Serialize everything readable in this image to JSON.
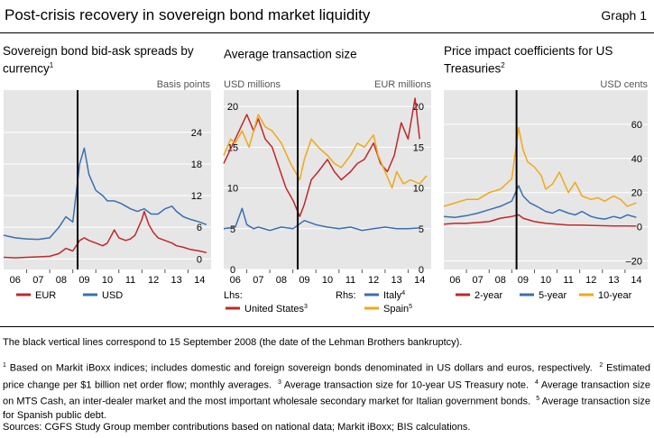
{
  "header": {
    "title": "Post-crisis recovery in sovereign bond market liquidity",
    "graph_label": "Graph 1"
  },
  "colors": {
    "red": "#c0282b",
    "blue": "#3a6fb0",
    "orange": "#f0a818",
    "plot_bg": "#e6e6e6",
    "grid": "#ffffff"
  },
  "panels": [
    {
      "title": "Sovereign bond bid-ask spreads by currency",
      "title_sup": "1",
      "unit_right": "Basis points",
      "legend": [
        {
          "label": "EUR",
          "sup": ""
        },
        {
          "label": "USD",
          "sup": ""
        }
      ]
    },
    {
      "title": "Average transaction size",
      "title_sup": "",
      "unit_left": "USD millions",
      "unit_right": "EUR millions",
      "legend_lhs": "Lhs:",
      "legend_rhs": "Rhs:",
      "legend": [
        {
          "label": "United States",
          "sup": "3"
        },
        {
          "label": "Italy",
          "sup": "4"
        },
        {
          "label": "Spain",
          "sup": "5"
        }
      ]
    },
    {
      "title": "Price impact coefficients for US Treasuries",
      "title_sup": "2",
      "unit_right": "USD cents",
      "legend": [
        {
          "label": "2-year",
          "sup": ""
        },
        {
          "label": "5-year",
          "sup": ""
        },
        {
          "label": "10-year",
          "sup": ""
        }
      ]
    }
  ],
  "chart_data": [
    {
      "type": "line",
      "title": "Sovereign bond bid-ask spreads by currency",
      "x_ticks": [
        "06",
        "07",
        "08",
        "09",
        "10",
        "11",
        "12",
        "13",
        "14"
      ],
      "x_range": [
        2005.5,
        2014.5
      ],
      "ylim": [
        -2,
        32
      ],
      "y_ticks": [
        0,
        6,
        12,
        18,
        24
      ],
      "y_unit": "Basis points",
      "vertical_line": 2008.71,
      "grid": true,
      "series": [
        {
          "name": "EUR",
          "color": "red",
          "x": [
            2005.5,
            2006.0,
            2006.5,
            2007.0,
            2007.5,
            2007.9,
            2008.2,
            2008.5,
            2008.8,
            2009.0,
            2009.2,
            2009.5,
            2009.8,
            2010.0,
            2010.3,
            2010.5,
            2010.8,
            2011.0,
            2011.2,
            2011.5,
            2011.6,
            2011.8,
            2012.0,
            2012.2,
            2012.5,
            2012.8,
            2013.0,
            2013.3,
            2013.6,
            2014.0,
            2014.3
          ],
          "y": [
            0.3,
            0.2,
            0.3,
            0.4,
            0.5,
            1.0,
            2.0,
            1.5,
            3.5,
            4.0,
            3.5,
            3.0,
            2.5,
            3.0,
            5.5,
            4.0,
            3.5,
            3.8,
            4.5,
            7.5,
            9.0,
            6.5,
            5.0,
            4.0,
            3.5,
            3.0,
            2.5,
            2.2,
            1.8,
            1.5,
            1.2
          ]
        },
        {
          "name": "USD",
          "color": "blue",
          "x": [
            2005.5,
            2006.0,
            2006.5,
            2007.0,
            2007.5,
            2007.9,
            2008.2,
            2008.5,
            2008.8,
            2009.0,
            2009.2,
            2009.5,
            2009.8,
            2010.0,
            2010.3,
            2010.6,
            2011.0,
            2011.3,
            2011.6,
            2011.9,
            2012.2,
            2012.5,
            2012.8,
            2013.0,
            2013.3,
            2013.6,
            2014.0,
            2014.3
          ],
          "y": [
            4.5,
            4.0,
            3.8,
            3.7,
            4.0,
            6.0,
            8.0,
            7.0,
            18.0,
            21.0,
            16.0,
            13.0,
            12.0,
            11.0,
            11.0,
            10.5,
            9.5,
            9.0,
            9.5,
            8.5,
            8.5,
            9.5,
            10.0,
            9.0,
            8.0,
            7.5,
            7.0,
            6.5
          ]
        }
      ]
    },
    {
      "type": "line",
      "title": "Average transaction size",
      "x_ticks": [
        "06",
        "07",
        "08",
        "09",
        "10",
        "11",
        "12",
        "13",
        "14"
      ],
      "x_range": [
        2005.5,
        2014.5
      ],
      "ylim": [
        0,
        22
      ],
      "y_ticks": [
        0,
        5,
        10,
        15,
        20
      ],
      "left_unit": "USD millions",
      "right_unit": "EUR millions",
      "vertical_line": 2008.71,
      "grid": true,
      "series": [
        {
          "name": "United States",
          "axis": "Lhs",
          "color": "red",
          "x": [
            2005.5,
            2006.0,
            2006.5,
            2006.8,
            2007.0,
            2007.3,
            2007.6,
            2007.9,
            2008.2,
            2008.5,
            2008.8,
            2009.0,
            2009.3,
            2009.6,
            2010.0,
            2010.3,
            2010.6,
            2011.0,
            2011.3,
            2011.6,
            2012.0,
            2012.3,
            2012.6,
            2012.9,
            2013.2,
            2013.5,
            2013.8,
            2014.0
          ],
          "y": [
            13.0,
            16.0,
            19.0,
            17.0,
            18.5,
            16.0,
            15.0,
            12.5,
            10.0,
            8.5,
            6.5,
            8.0,
            11.0,
            12.0,
            13.5,
            12.0,
            11.0,
            12.0,
            13.0,
            13.5,
            15.5,
            13.0,
            12.0,
            14.0,
            18.0,
            16.0,
            21.0,
            16.0
          ]
        },
        {
          "name": "Italy",
          "axis": "Rhs",
          "color": "blue",
          "x": [
            2005.5,
            2006.0,
            2006.3,
            2006.5,
            2006.8,
            2007.0,
            2007.5,
            2008.0,
            2008.5,
            2009.0,
            2009.5,
            2010.0,
            2010.5,
            2011.0,
            2011.5,
            2012.0,
            2012.5,
            2013.0,
            2013.5,
            2014.0
          ],
          "y": [
            5.0,
            5.2,
            7.5,
            5.5,
            5.0,
            5.2,
            4.8,
            5.2,
            5.0,
            6.0,
            5.5,
            5.2,
            5.0,
            5.2,
            4.8,
            5.0,
            5.2,
            5.0,
            5.0,
            5.1
          ]
        },
        {
          "name": "Spain",
          "axis": "Rhs",
          "color": "orange",
          "x": [
            2005.5,
            2005.8,
            2006.0,
            2006.3,
            2006.6,
            2007.0,
            2007.3,
            2007.6,
            2008.0,
            2008.4,
            2008.8,
            2009.0,
            2009.3,
            2009.6,
            2010.0,
            2010.3,
            2010.6,
            2011.0,
            2011.3,
            2011.6,
            2012.0,
            2012.2,
            2012.5,
            2012.8,
            2013.0,
            2013.3,
            2013.6,
            2014.0,
            2014.3
          ],
          "y": [
            14.0,
            16.0,
            15.5,
            17.0,
            15.0,
            19.0,
            17.5,
            17.0,
            15.5,
            13.0,
            11.0,
            13.5,
            16.0,
            15.0,
            14.0,
            13.0,
            12.5,
            14.0,
            15.5,
            15.0,
            16.5,
            14.0,
            12.0,
            10.0,
            12.0,
            10.5,
            11.0,
            10.5,
            11.5
          ]
        }
      ]
    },
    {
      "type": "line",
      "title": "Price impact coefficients for US Treasuries",
      "x_ticks": [
        "06",
        "07",
        "08",
        "09",
        "10",
        "11",
        "12",
        "13",
        "14"
      ],
      "x_range": [
        2005.5,
        2014.5
      ],
      "ylim": [
        -25,
        80
      ],
      "y_ticks": [
        -20,
        0,
        20,
        40,
        60
      ],
      "y_unit": "USD cents",
      "vertical_line": 2008.71,
      "grid": true,
      "series": [
        {
          "name": "2-year",
          "color": "red",
          "x": [
            2005.5,
            2006.0,
            2006.5,
            2007.0,
            2007.5,
            2008.0,
            2008.5,
            2008.8,
            2009.0,
            2009.5,
            2010.0,
            2010.5,
            2011.0,
            2011.5,
            2012.0,
            2012.5,
            2013.0,
            2013.5,
            2014.0
          ],
          "y": [
            1.5,
            2.0,
            2.0,
            2.5,
            3.0,
            5.0,
            6.0,
            7.0,
            5.0,
            3.0,
            2.0,
            1.5,
            1.0,
            1.0,
            0.8,
            0.6,
            0.5,
            0.5,
            0.4
          ]
        },
        {
          "name": "5-year",
          "color": "blue",
          "x": [
            2005.5,
            2006.0,
            2006.5,
            2007.0,
            2007.5,
            2008.0,
            2008.5,
            2008.8,
            2009.0,
            2009.3,
            2009.6,
            2010.0,
            2010.3,
            2010.6,
            2011.0,
            2011.3,
            2011.6,
            2012.0,
            2012.3,
            2012.6,
            2013.0,
            2013.3,
            2013.6,
            2014.0
          ],
          "y": [
            6.0,
            5.5,
            6.5,
            8.0,
            10.0,
            12.0,
            15.0,
            24.0,
            18.0,
            14.0,
            12.0,
            9.0,
            8.0,
            10.0,
            8.0,
            7.0,
            9.0,
            6.0,
            5.0,
            4.5,
            6.0,
            5.0,
            7.0,
            5.5
          ]
        },
        {
          "name": "10-year",
          "color": "orange",
          "x": [
            2005.5,
            2006.0,
            2006.5,
            2007.0,
            2007.5,
            2008.0,
            2008.5,
            2008.8,
            2009.0,
            2009.2,
            2009.5,
            2009.8,
            2010.0,
            2010.3,
            2010.6,
            2011.0,
            2011.3,
            2011.6,
            2012.0,
            2012.3,
            2012.6,
            2013.0,
            2013.3,
            2013.6,
            2014.0
          ],
          "y": [
            12.0,
            14.0,
            16.0,
            16.0,
            20.0,
            22.0,
            28.0,
            58.0,
            45.0,
            38.0,
            35.0,
            30.0,
            22.0,
            25.0,
            32.0,
            20.0,
            26.0,
            18.0,
            16.0,
            17.0,
            15.0,
            18.0,
            16.0,
            12.0,
            14.0
          ]
        }
      ]
    }
  ],
  "footnotes": {
    "note": "The black vertical lines correspond to 15 September 2008 (the date of the Lehman Brothers bankruptcy).",
    "n1_sup": "1",
    "n1": "Based on Markit iBoxx indices; includes domestic and foreign sovereign bonds denominated in US dollars and euros, respectively.",
    "n2_sup": "2",
    "n2": "Estimated price change per $1 billion net order flow; monthly averages.",
    "n3_sup": "3",
    "n3": "Average transaction size for 10-year US Treasury note.",
    "n4_sup": "4",
    "n4": "Average transaction size on MTS Cash, an inter-dealer market and the most important wholesale secondary market for Italian government bonds.",
    "n5_sup": "5",
    "n5": "Average transaction size for Spanish public debt.",
    "sources": "Sources: CGFS Study Group member contributions based on national data; Markit iBoxx; BIS calculations."
  }
}
